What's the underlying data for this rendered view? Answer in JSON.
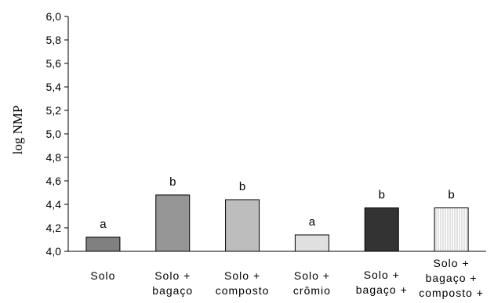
{
  "chart_data": {
    "type": "bar",
    "title": "",
    "xlabel": "",
    "ylabel": "log NMP",
    "ylim": [
      4.0,
      6.0
    ],
    "yticks": [
      "4,0",
      "4,2",
      "4,4",
      "4,6",
      "4,8",
      "5,0",
      "5,2",
      "5,4",
      "5,6",
      "5,8",
      "6,0"
    ],
    "categories": [
      [
        "Solo"
      ],
      [
        "Solo +",
        "bagaço"
      ],
      [
        "Solo +",
        "composto"
      ],
      [
        "Solo +",
        "crômio"
      ],
      [
        "Solo +",
        "bagaço +"
      ],
      [
        "Solo +",
        "bagaço +",
        "composto +"
      ]
    ],
    "values": [
      4.12,
      4.48,
      4.44,
      4.14,
      4.37,
      4.37
    ],
    "significance_letters": [
      "a",
      "b",
      "b",
      "a",
      "b",
      "b"
    ],
    "bar_colors": [
      "#808080",
      "#969696",
      "#bdbdbd",
      "#e0e0e0",
      "#333333",
      "#ffffff"
    ],
    "bar_patterns": [
      "solid",
      "solid",
      "solid",
      "solid",
      "solid",
      "vertical-lines"
    ],
    "grid": false,
    "legend": "none"
  }
}
